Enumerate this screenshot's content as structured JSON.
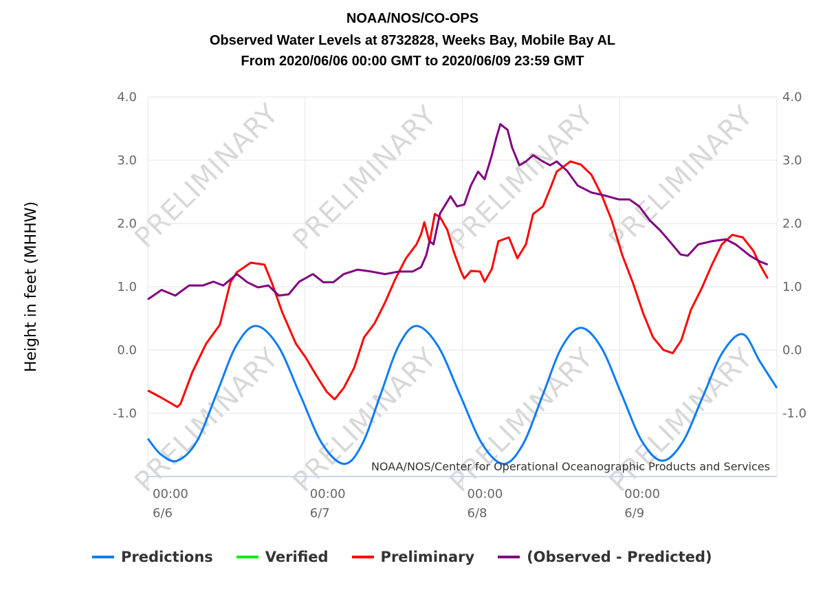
{
  "titles": [
    "NOAA/NOS/CO-OPS",
    "Observed Water Levels at 8732828, Weeks Bay, Mobile Bay AL",
    "From 2020/06/06 00:00 GMT to 2020/06/09 23:59 GMT"
  ],
  "watermark": "PRELIMINARY",
  "credit": "NOAA/NOS/Center for Operational Oceanographic Products and Services",
  "chart_data": {
    "type": "line",
    "title": "NOAA/NOS/CO-OPS Observed Water Levels at 8732828, Weeks Bay, Mobile Bay AL",
    "xlabel": "",
    "ylabel": "Height in feet (MHHW)",
    "x_unit": "hours since 2020/06/06 00:00 GMT",
    "xlim": [
      0,
      96
    ],
    "ylim": [
      -2,
      4
    ],
    "yticks": [
      "4.0",
      "3.0",
      "2.0",
      "1.0",
      "0.0",
      "-1.0"
    ],
    "ytick_values": [
      4,
      3,
      2,
      1,
      0,
      -1
    ],
    "xticks": [
      {
        "hour": 0,
        "time": "00:00",
        "date": "6/6"
      },
      {
        "hour": 24,
        "time": "00:00",
        "date": "6/7"
      },
      {
        "hour": 48,
        "time": "00:00",
        "date": "6/8"
      },
      {
        "hour": 72,
        "time": "00:00",
        "date": "6/9"
      }
    ],
    "grid": true,
    "legend_position": "bottom",
    "series": [
      {
        "name": "Predictions",
        "color": "#0a7cf4",
        "x": [
          0,
          2,
          4.5,
          7.5,
          10.5,
          13.5,
          16.5,
          19.9,
          23.25,
          26.6,
          30,
          32.75,
          35.5,
          38.25,
          41,
          44.3,
          47.65,
          51,
          54.3,
          57.25,
          60.2,
          63.15,
          66.1,
          69.2,
          72.3,
          75.4,
          78.5,
          81.6,
          84.65,
          87.7,
          90.8,
          93.4,
          96
        ],
        "y": [
          -1.4,
          -1.65,
          -1.75,
          -1.44,
          -0.69,
          0.07,
          0.38,
          0.06,
          -0.71,
          -1.48,
          -1.8,
          -1.48,
          -0.71,
          0.06,
          0.38,
          0.06,
          -0.71,
          -1.48,
          -1.8,
          -1.49,
          -0.73,
          0.04,
          0.35,
          0.04,
          -0.7,
          -1.44,
          -1.75,
          -1.46,
          -0.75,
          -0.04,
          0.25,
          -0.18,
          -0.6
        ]
      },
      {
        "name": "Verified",
        "color": "#00ee00",
        "x": [],
        "y": []
      },
      {
        "name": "Preliminary",
        "color": "#ff0000",
        "x": [
          0,
          2,
          4.5,
          5,
          6.8,
          8.9,
          11,
          12.6,
          13.6,
          15.7,
          17.8,
          18.9,
          20.5,
          22.6,
          24.1,
          25.7,
          27.3,
          28.5,
          29.9,
          31.5,
          33,
          34.6,
          36.2,
          37.8,
          39.4,
          41,
          41.7,
          42.2,
          43,
          43.8,
          44.6,
          45.7,
          46.7,
          47.8,
          48.3,
          49.3,
          50.7,
          51.4,
          52.5,
          53.5,
          55.1,
          56.4,
          57.7,
          58.8,
          60.3,
          61.4,
          62.4,
          64.5,
          66.1,
          67.7,
          69.3,
          70.8,
          72.4,
          74,
          75.6,
          77.1,
          78.7,
          80.1,
          81.4,
          82.9,
          84.5,
          86.1,
          87.6,
          89.2,
          90.8,
          92.4,
          93.4,
          94.6
        ],
        "y": [
          -0.64,
          -0.75,
          -0.9,
          -0.85,
          -0.35,
          0.1,
          0.4,
          1.07,
          1.23,
          1.38,
          1.35,
          1.07,
          0.6,
          0.1,
          -0.12,
          -0.4,
          -0.66,
          -0.78,
          -0.6,
          -0.28,
          0.2,
          0.42,
          0.75,
          1.13,
          1.45,
          1.67,
          1.83,
          2.02,
          1.7,
          2.15,
          2.1,
          1.9,
          1.55,
          1.24,
          1.13,
          1.25,
          1.24,
          1.08,
          1.28,
          1.72,
          1.78,
          1.45,
          1.67,
          2.15,
          2.27,
          2.55,
          2.82,
          2.98,
          2.93,
          2.77,
          2.44,
          2.05,
          1.5,
          1.07,
          0.58,
          0.2,
          0,
          -0.05,
          0.15,
          0.64,
          0.97,
          1.35,
          1.67,
          1.82,
          1.78,
          1.57,
          1.35,
          1.13
        ]
      },
      {
        "name": "(Observed - Predicted)",
        "color": "#800080",
        "x": [
          0,
          2.1,
          4.2,
          6.3,
          8.4,
          10,
          11.5,
          13.6,
          15.2,
          16.8,
          18.4,
          20,
          21.5,
          23.1,
          25.2,
          26.8,
          28.3,
          29.9,
          32,
          34.1,
          36.2,
          38.3,
          40.4,
          41.7,
          42.5,
          43,
          43.6,
          44.6,
          46.2,
          47.2,
          48.3,
          49.3,
          50.4,
          51.4,
          52.5,
          53.2,
          53.8,
          54.9,
          55.6,
          56.7,
          57.7,
          58.8,
          60.3,
          61.4,
          62.4,
          64,
          65.6,
          67.7,
          69.8,
          71.9,
          73.5,
          75,
          76.6,
          78.2,
          79.7,
          81.3,
          82.4,
          84,
          86.1,
          88.2,
          89.7,
          91.9,
          93.4,
          94.6
        ],
        "y": [
          0.8,
          0.95,
          0.86,
          1.02,
          1.02,
          1.08,
          1.02,
          1.2,
          1.07,
          0.99,
          1.02,
          0.86,
          0.88,
          1.08,
          1.2,
          1.07,
          1.07,
          1.2,
          1.27,
          1.24,
          1.2,
          1.24,
          1.24,
          1.31,
          1.5,
          1.72,
          1.67,
          2.16,
          2.43,
          2.27,
          2.3,
          2.6,
          2.82,
          2.7,
          3.08,
          3.36,
          3.57,
          3.48,
          3.2,
          2.92,
          2.98,
          3.08,
          2.98,
          2.92,
          2.98,
          2.83,
          2.6,
          2.49,
          2.44,
          2.38,
          2.38,
          2.27,
          2.05,
          1.89,
          1.71,
          1.51,
          1.49,
          1.67,
          1.72,
          1.75,
          1.67,
          1.49,
          1.4,
          1.35
        ]
      }
    ]
  }
}
